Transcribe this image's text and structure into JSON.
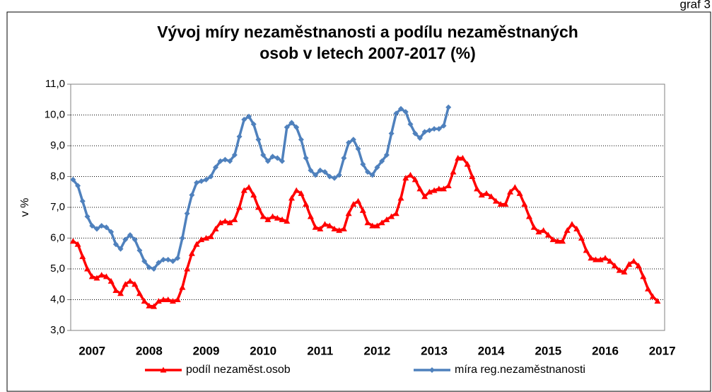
{
  "page_label": "graf 3",
  "chart_data": {
    "type": "line",
    "title": [
      "Vývoj míry nezaměstnanosti a podílu nezaměstnaných",
      "osob v letech 2007-2017 (%)"
    ],
    "y_label": "v %",
    "categories": [
      null,
      null,
      null,
      null,
      "2007",
      null,
      null,
      null,
      null,
      null,
      null,
      null,
      null,
      null,
      null,
      null,
      "2008",
      null,
      null,
      null,
      null,
      null,
      null,
      null,
      null,
      null,
      null,
      null,
      "2009",
      null,
      null,
      null,
      null,
      null,
      null,
      null,
      null,
      null,
      null,
      null,
      "2010",
      null,
      null,
      null,
      null,
      null,
      null,
      null,
      null,
      null,
      null,
      null,
      "2011",
      null,
      null,
      null,
      null,
      null,
      null,
      null,
      null,
      null,
      null,
      null,
      "2012",
      null,
      null,
      null,
      null,
      null,
      null,
      null,
      null,
      null,
      null,
      null,
      "2013",
      null,
      null,
      null,
      null,
      null,
      null,
      null,
      null,
      null,
      null,
      null,
      "2014",
      null,
      null,
      null,
      null,
      null,
      null,
      null,
      null,
      null,
      null,
      null,
      "2015",
      null,
      null,
      null,
      null,
      null,
      null,
      null,
      null,
      null,
      null,
      null,
      "2016",
      null,
      null,
      null,
      null,
      null,
      null,
      null,
      null,
      null,
      null,
      null,
      "2017"
    ],
    "series": [
      {
        "name": "podíl nezaměst.osob",
        "color": "#ff0000",
        "marker": "triangle",
        "values": [
          5.9,
          5.8,
          5.4,
          5.0,
          4.75,
          4.7,
          4.8,
          4.75,
          4.6,
          4.3,
          4.2,
          4.5,
          4.6,
          4.5,
          4.2,
          3.95,
          3.8,
          3.78,
          3.95,
          4.0,
          4.0,
          3.95,
          4.0,
          4.4,
          5.0,
          5.5,
          5.8,
          5.95,
          6.0,
          6.05,
          6.3,
          6.5,
          6.55,
          6.5,
          6.6,
          7.0,
          7.55,
          7.65,
          7.4,
          7.0,
          6.7,
          6.6,
          6.7,
          6.65,
          6.6,
          6.55,
          7.3,
          7.55,
          7.45,
          7.1,
          6.7,
          6.35,
          6.3,
          6.45,
          6.4,
          6.3,
          6.25,
          6.3,
          6.8,
          7.1,
          7.2,
          6.9,
          6.5,
          6.4,
          6.4,
          6.5,
          6.6,
          6.7,
          6.8,
          7.3,
          7.95,
          8.05,
          7.9,
          7.6,
          7.35,
          7.5,
          7.55,
          7.6,
          7.6,
          7.7,
          8.15,
          8.6,
          8.6,
          8.4,
          8.0,
          7.6,
          7.4,
          7.45,
          7.35,
          7.2,
          7.1,
          7.1,
          7.5,
          7.65,
          7.45,
          7.1,
          6.7,
          6.35,
          6.2,
          6.25,
          6.1,
          5.95,
          5.9,
          5.9,
          6.25,
          6.45,
          6.3,
          6.0,
          5.6,
          5.35,
          5.3,
          5.3,
          5.35,
          5.25,
          5.1,
          4.95,
          4.9,
          5.15,
          5.25,
          5.1,
          4.75,
          4.35,
          4.1,
          3.95,
          null
        ]
      },
      {
        "name": "míra reg.nezaměstnanosti",
        "color": "#4f81bd",
        "marker": "diamond",
        "values": [
          7.9,
          7.7,
          7.2,
          6.7,
          6.4,
          6.3,
          6.4,
          6.35,
          6.2,
          5.8,
          5.65,
          5.95,
          6.1,
          5.95,
          5.6,
          5.25,
          5.05,
          5.0,
          5.2,
          5.3,
          5.3,
          5.25,
          5.35,
          6.0,
          6.8,
          7.4,
          7.8,
          7.85,
          7.9,
          8.0,
          8.3,
          8.5,
          8.55,
          8.5,
          8.7,
          9.3,
          9.85,
          9.95,
          9.7,
          9.2,
          8.7,
          8.5,
          8.65,
          8.6,
          8.5,
          9.6,
          9.75,
          9.6,
          9.2,
          8.6,
          8.2,
          8.05,
          8.2,
          8.15,
          8.0,
          7.95,
          8.05,
          8.6,
          9.1,
          9.2,
          8.9,
          8.4,
          8.15,
          8.05,
          8.3,
          8.5,
          8.7,
          9.4,
          10.05,
          10.2,
          10.1,
          9.7,
          9.4,
          9.25,
          9.45,
          9.5,
          9.55,
          9.55,
          9.65,
          10.25,
          null,
          null,
          null,
          null,
          null,
          null,
          null,
          null,
          null,
          null,
          null,
          null,
          null,
          null,
          null,
          null,
          null,
          null,
          null,
          null,
          null,
          null,
          null,
          null,
          null,
          null,
          null,
          null,
          null,
          null,
          null,
          null,
          null,
          null,
          null,
          null,
          null,
          null,
          null,
          null,
          null,
          null,
          null,
          null,
          null
        ]
      }
    ],
    "ylim": [
      3,
      11
    ],
    "yticks": [
      {
        "value": 3,
        "label": "3,0"
      },
      {
        "value": 4,
        "label": "4,0"
      },
      {
        "value": 5,
        "label": "5,0"
      },
      {
        "value": 6,
        "label": "6,0"
      },
      {
        "value": 7,
        "label": "7,0"
      },
      {
        "value": 8,
        "label": "8,0"
      },
      {
        "value": 9,
        "label": "9,0"
      },
      {
        "value": 10,
        "label": "10,0"
      },
      {
        "value": 11,
        "label": "11,0"
      }
    ],
    "grid": true,
    "legend": "bottom"
  }
}
